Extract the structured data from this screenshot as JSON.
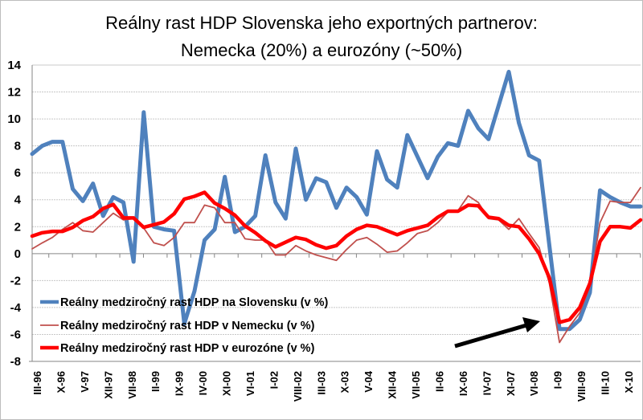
{
  "chart_data": {
    "type": "line",
    "title": [
      "Reálny rast HDP Slovenska jeho exportných partnerov:",
      "Nemecka (20%) a eurozóny (~50%)"
    ],
    "xlabel": "",
    "ylabel": "",
    "ylim": [
      -8,
      14
    ],
    "yticks": [
      14,
      12,
      10,
      8,
      6,
      4,
      2,
      0,
      -2,
      -4,
      -6,
      -8
    ],
    "grid": true,
    "legend_position": "bottom-left",
    "x_tick_labels": [
      "III-96",
      "X-96",
      "V-97",
      "XII-97",
      "VII-98",
      "II-99",
      "IX-99",
      "IV-00",
      "XI-00",
      "VI-01",
      "I-02",
      "VIII-02",
      "III-03",
      "X-03",
      "V-04",
      "XII-04",
      "VII-05",
      "II-06",
      "IX-06",
      "IV-07",
      "XI-07",
      "VI-08",
      "I-09",
      "VIII-09",
      "III-10",
      "X-10"
    ],
    "series": [
      {
        "name": "Reálny medziročný rast HDP na Slovensku (v %)",
        "color": "#4f81bd",
        "values": [
          7.4,
          8.0,
          8.3,
          8.3,
          4.8,
          3.9,
          5.2,
          2.8,
          4.2,
          3.8,
          -0.6,
          10.5,
          2.0,
          1.8,
          1.7,
          -5.2,
          -2.8,
          1.0,
          1.8,
          5.7,
          1.6,
          2.0,
          2.8,
          7.3,
          3.8,
          2.6,
          7.8,
          4.0,
          5.6,
          5.3,
          3.4,
          4.9,
          4.2,
          2.9,
          7.6,
          5.5,
          4.9,
          8.8,
          7.2,
          5.6,
          7.2,
          8.2,
          8.0,
          10.6,
          9.3,
          8.5,
          11.0,
          13.5,
          9.7,
          7.3,
          6.9,
          0.6,
          -5.6,
          -5.6,
          -4.9,
          -2.9,
          4.7,
          4.2,
          3.8,
          3.5,
          3.5
        ]
      },
      {
        "name": "Reálny medziročný rast HDP v Nemecku (v %)",
        "color": "#c0504d",
        "values": [
          0.35,
          0.8,
          1.2,
          1.8,
          2.3,
          1.7,
          1.6,
          2.3,
          3.0,
          2.5,
          2.6,
          1.9,
          0.8,
          0.6,
          1.2,
          2.3,
          2.3,
          3.6,
          3.4,
          2.3,
          2.3,
          1.1,
          1.0,
          1.0,
          -0.1,
          -0.1,
          0.6,
          0.2,
          -0.1,
          -0.3,
          -0.5,
          0.3,
          1.0,
          1.2,
          0.7,
          0.1,
          0.2,
          0.8,
          1.5,
          1.7,
          2.3,
          3.1,
          3.2,
          4.3,
          3.8,
          2.6,
          2.5,
          1.8,
          2.6,
          1.5,
          0.45,
          -2.2,
          -6.6,
          -5.4,
          -4.4,
          -2.4,
          2.3,
          3.9,
          3.8,
          3.8,
          4.9
        ]
      },
      {
        "name": "Reálny medziročný rast HDP v eurozóne (v %)",
        "color": "#ff0000",
        "values": [
          1.3,
          1.55,
          1.65,
          1.65,
          1.95,
          2.45,
          2.75,
          3.35,
          3.65,
          2.65,
          2.65,
          1.95,
          2.15,
          2.35,
          2.95,
          4.05,
          4.25,
          4.55,
          3.75,
          3.35,
          2.85,
          2.05,
          1.55,
          0.95,
          0.5,
          0.85,
          1.2,
          1.05,
          0.65,
          0.4,
          0.6,
          1.3,
          1.8,
          2.1,
          2.0,
          1.7,
          1.4,
          1.7,
          1.9,
          2.1,
          2.7,
          3.15,
          3.15,
          3.6,
          3.55,
          2.7,
          2.6,
          2.1,
          2.0,
          1.1,
          0.0,
          -1.8,
          -5.1,
          -4.9,
          -4.0,
          -2.2,
          0.9,
          2.0,
          2.0,
          1.9,
          2.5
        ]
      }
    ],
    "annotations": [
      {
        "type": "arrow",
        "points_to": "I-09 minimum"
      }
    ]
  }
}
